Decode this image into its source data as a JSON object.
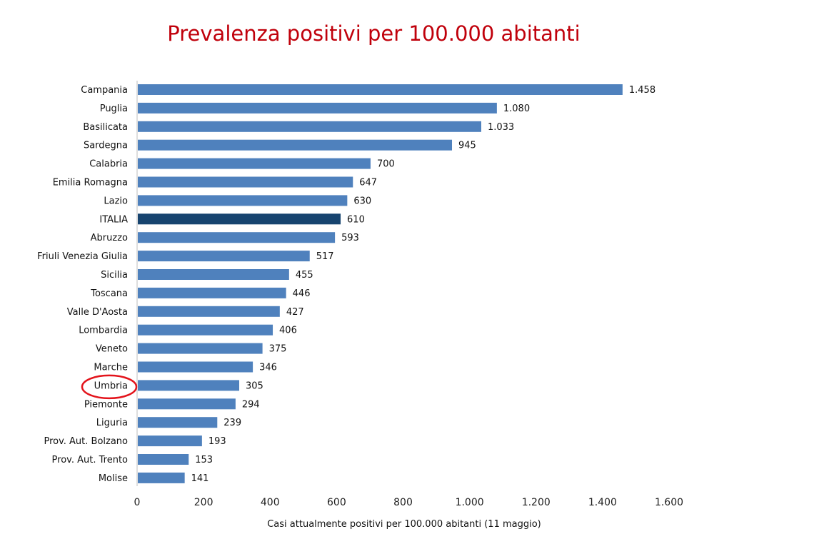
{
  "chart_data": {
    "type": "bar",
    "orientation": "horizontal",
    "title": "Prevalenza positivi per 100.000 abitanti",
    "xlabel": "Casi attualmente positivi per 100.000 abitanti (11 maggio)",
    "ylabel": "",
    "xlim": [
      0,
      1600
    ],
    "ticks": [
      0,
      200,
      400,
      600,
      800,
      1000,
      1200,
      1400,
      1600
    ],
    "tick_labels": [
      "0",
      "200",
      "400",
      "600",
      "800",
      "1.000",
      "1.200",
      "1.400",
      "1.600"
    ],
    "grid": false,
    "categories": [
      "Campania",
      "Puglia",
      "Basilicata",
      "Sardegna",
      "Calabria",
      "Emilia Romagna",
      "Lazio",
      "ITALIA",
      "Abruzzo",
      "Friuli Venezia Giulia",
      "Sicilia",
      "Toscana",
      "Valle D'Aosta",
      "Lombardia",
      "Veneto",
      "Marche",
      "Umbria",
      "Piemonte",
      "Liguria",
      "Prov. Aut. Bolzano",
      "Prov. Aut. Trento",
      "Molise"
    ],
    "values": [
      1458,
      1080,
      1033,
      945,
      700,
      647,
      630,
      610,
      593,
      517,
      455,
      446,
      427,
      406,
      375,
      346,
      305,
      294,
      239,
      193,
      153,
      141
    ],
    "value_labels": [
      "1.458",
      "1.080",
      "1.033",
      "945",
      "700",
      "647",
      "630",
      "610",
      "593",
      "517",
      "455",
      "446",
      "427",
      "406",
      "375",
      "346",
      "305",
      "294",
      "239",
      "193",
      "153",
      "141"
    ],
    "highlighted": "ITALIA",
    "circled": "Umbria",
    "colors": {
      "bar": "#4f81bd",
      "highlight_bar": "#17446f",
      "circle": "#e3131b"
    }
  }
}
